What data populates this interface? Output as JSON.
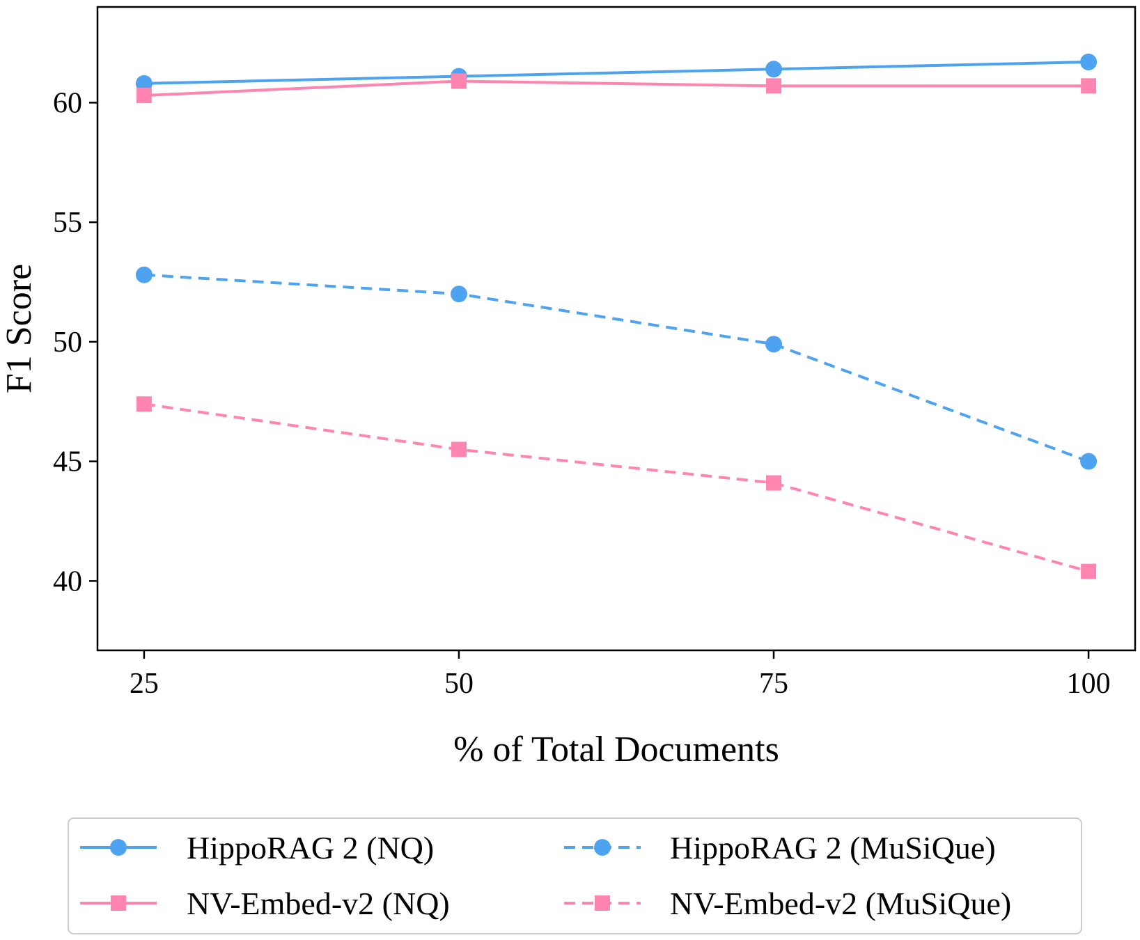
{
  "chart_data": {
    "type": "line",
    "title": "",
    "xlabel": "% of Total Documents",
    "ylabel": "F1 Score",
    "x": [
      25,
      50,
      75,
      100
    ],
    "xticks": [
      "25",
      "50",
      "75",
      "100"
    ],
    "yticks": [
      "40",
      "45",
      "50",
      "55",
      "60"
    ],
    "xlim": [
      21.3,
      103.7
    ],
    "ylim": [
      37.1,
      64.0
    ],
    "grid": false,
    "legend_position": "bottom",
    "series": [
      {
        "name": "HippoRAG 2 (NQ)",
        "values": [
          60.8,
          61.1,
          61.4,
          61.7
        ],
        "color": "#4DA3F0",
        "marker": "circle",
        "dashed": false
      },
      {
        "name": "NV-Embed-v2 (NQ)",
        "values": [
          60.3,
          60.9,
          60.7,
          60.7
        ],
        "color": "#FF85B0",
        "marker": "square",
        "dashed": false
      },
      {
        "name": "HippoRAG 2 (MuSiQue)",
        "values": [
          52.8,
          52.0,
          49.9,
          45.0
        ],
        "color": "#4DA3F0",
        "marker": "circle",
        "dashed": true
      },
      {
        "name": "NV-Embed-v2 (MuSiQue)",
        "values": [
          47.4,
          45.5,
          44.1,
          40.4
        ],
        "color": "#FF85B0",
        "marker": "square",
        "dashed": true
      }
    ]
  }
}
